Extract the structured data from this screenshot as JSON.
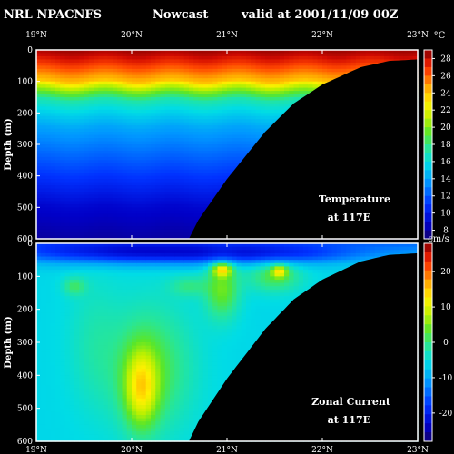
{
  "header": {
    "title_left": "NRL NPACNFS",
    "title_mid": "Nowcast",
    "title_right": "valid at 2001/11/09 00Z"
  },
  "chart_data": [
    {
      "type": "heatmap",
      "panel": "top",
      "annotation_line1": "Temperature",
      "annotation_line2": "at 117E",
      "ylabel": "Depth (m)",
      "x_ticks": [
        "19°N",
        "20°N",
        "21°N",
        "22°N",
        "23°N"
      ],
      "x_range": [
        19,
        23
      ],
      "y_ticks": [
        "0",
        "100",
        "200",
        "300",
        "400",
        "500",
        "600"
      ],
      "y_range": [
        0,
        600
      ],
      "colorbar_unit": "°C",
      "colorbar_ticks": [
        "28",
        "26",
        "24",
        "22",
        "20",
        "18",
        "16",
        "14",
        "12",
        "10",
        "8"
      ],
      "colorbar_range": [
        7,
        29
      ],
      "bathymetry_depth": [
        [
          20.6,
          600
        ],
        [
          20.7,
          540
        ],
        [
          21.0,
          410
        ],
        [
          21.4,
          260
        ],
        [
          21.7,
          170
        ],
        [
          22.0,
          110
        ],
        [
          22.4,
          55
        ],
        [
          22.7,
          35
        ],
        [
          23.0,
          30
        ]
      ],
      "layers": [
        {
          "depth": 0,
          "value": 28.5
        },
        {
          "depth": 20,
          "value": 28
        },
        {
          "depth": 50,
          "value": 26.5
        },
        {
          "depth": 80,
          "value": 25
        },
        {
          "depth": 100,
          "value": 24
        },
        {
          "depth": 120,
          "value": 21
        },
        {
          "depth": 140,
          "value": 19
        },
        {
          "depth": 160,
          "value": 17
        },
        {
          "depth": 200,
          "value": 15.5
        },
        {
          "depth": 250,
          "value": 14
        },
        {
          "depth": 300,
          "value": 13
        },
        {
          "depth": 350,
          "value": 12
        },
        {
          "depth": 400,
          "value": 11
        },
        {
          "depth": 450,
          "value": 10
        },
        {
          "depth": 500,
          "value": 9
        },
        {
          "depth": 600,
          "value": 8
        }
      ]
    },
    {
      "type": "heatmap",
      "panel": "bottom",
      "annotation_line1": "Zonal Current",
      "annotation_line2": "at 117E",
      "ylabel": "Depth (m)",
      "x_ticks": [
        "19°N",
        "20°N",
        "21°N",
        "22°N",
        "23°N"
      ],
      "x_range": [
        19,
        23
      ],
      "y_ticks": [
        "0",
        "100",
        "200",
        "300",
        "400",
        "500",
        "600"
      ],
      "y_range": [
        0,
        600
      ],
      "colorbar_unit": "cm/s",
      "colorbar_ticks": [
        "20",
        "10",
        "0",
        "-10",
        "-20"
      ],
      "colorbar_range": [
        -28,
        28
      ],
      "bathymetry_depth": [
        [
          20.6,
          600
        ],
        [
          20.7,
          540
        ],
        [
          21.0,
          410
        ],
        [
          21.4,
          260
        ],
        [
          21.7,
          170
        ],
        [
          22.0,
          110
        ],
        [
          22.4,
          55
        ],
        [
          22.7,
          35
        ],
        [
          23.0,
          30
        ]
      ],
      "background_value": -6,
      "blobs": [
        {
          "lat": 20.0,
          "depth": 30,
          "rlat": 1.6,
          "rdepth": 45,
          "value": -18
        },
        {
          "lat": 21.5,
          "depth": 35,
          "rlat": 1.2,
          "rdepth": 40,
          "value": -14
        },
        {
          "lat": 19.6,
          "depth": 300,
          "rlat": 0.35,
          "rdepth": 260,
          "value": -3
        },
        {
          "lat": 20.2,
          "depth": 380,
          "rlat": 0.55,
          "rdepth": 240,
          "value": 2
        },
        {
          "lat": 20.1,
          "depth": 440,
          "rlat": 0.22,
          "rdepth": 150,
          "value": 8
        },
        {
          "lat": 20.95,
          "depth": 140,
          "rlat": 0.22,
          "rdepth": 110,
          "value": 4
        },
        {
          "lat": 20.95,
          "depth": 80,
          "rlat": 0.12,
          "rdepth": 25,
          "value": 10
        },
        {
          "lat": 21.5,
          "depth": 100,
          "rlat": 0.35,
          "rdepth": 60,
          "value": 2
        },
        {
          "lat": 21.55,
          "depth": 85,
          "rlat": 0.1,
          "rdepth": 22,
          "value": 8
        },
        {
          "lat": 19.4,
          "depth": 130,
          "rlat": 0.15,
          "rdepth": 35,
          "value": 0
        },
        {
          "lat": 20.6,
          "depth": 130,
          "rlat": 0.25,
          "rdepth": 40,
          "value": -1
        }
      ]
    }
  ]
}
